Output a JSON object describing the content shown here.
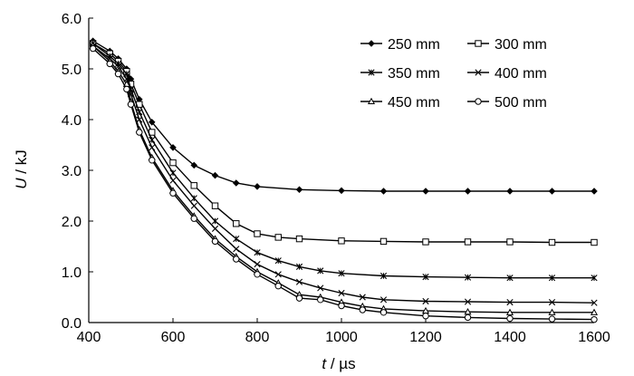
{
  "chart_data": {
    "type": "line",
    "title": "",
    "x_axis": {
      "label": {
        "var": "t",
        "unit": " / µs"
      },
      "range": [
        400,
        1600
      ],
      "ticks": [
        400,
        600,
        800,
        1000,
        1200,
        1400,
        1600
      ]
    },
    "y_axis": {
      "label": {
        "var": "U",
        "unit": " / kJ"
      },
      "range": [
        0.0,
        6.0
      ],
      "ticks": [
        "0.0",
        "1.0",
        "2.0",
        "3.0",
        "4.0",
        "5.0",
        "6.0"
      ]
    },
    "grid": false,
    "legend_position": "top-right",
    "series": [
      {
        "name": "250 mm",
        "marker": "diamond",
        "x": [
          410,
          450,
          470,
          490,
          500,
          520,
          550,
          600,
          650,
          700,
          750,
          800,
          900,
          1000,
          1100,
          1200,
          1300,
          1400,
          1500,
          1600
        ],
        "y": [
          5.55,
          5.35,
          5.2,
          5.0,
          4.8,
          4.4,
          3.95,
          3.45,
          3.1,
          2.9,
          2.75,
          2.68,
          2.62,
          2.6,
          2.59,
          2.59,
          2.59,
          2.59,
          2.59,
          2.59
        ]
      },
      {
        "name": "300 mm",
        "marker": "square",
        "x": [
          410,
          450,
          470,
          490,
          500,
          520,
          550,
          600,
          650,
          700,
          750,
          800,
          850,
          900,
          1000,
          1100,
          1200,
          1300,
          1400,
          1500,
          1600
        ],
        "y": [
          5.5,
          5.3,
          5.15,
          4.95,
          4.7,
          4.3,
          3.75,
          3.15,
          2.7,
          2.3,
          1.95,
          1.75,
          1.68,
          1.65,
          1.61,
          1.6,
          1.59,
          1.59,
          1.59,
          1.58,
          1.58
        ]
      },
      {
        "name": "350 mm",
        "marker": "asterisk",
        "x": [
          410,
          450,
          470,
          490,
          500,
          520,
          550,
          600,
          650,
          700,
          750,
          800,
          850,
          900,
          950,
          1000,
          1100,
          1200,
          1300,
          1400,
          1500,
          1600
        ],
        "y": [
          5.5,
          5.25,
          5.1,
          4.9,
          4.6,
          4.15,
          3.6,
          2.95,
          2.45,
          2.0,
          1.65,
          1.38,
          1.22,
          1.1,
          1.02,
          0.97,
          0.92,
          0.9,
          0.89,
          0.88,
          0.88,
          0.88
        ]
      },
      {
        "name": "400 mm",
        "marker": "cross",
        "x": [
          410,
          450,
          470,
          490,
          500,
          520,
          550,
          600,
          650,
          700,
          750,
          800,
          850,
          900,
          950,
          1000,
          1050,
          1100,
          1200,
          1300,
          1400,
          1500,
          1600
        ],
        "y": [
          5.45,
          5.2,
          5.05,
          4.8,
          4.5,
          4.0,
          3.45,
          2.8,
          2.3,
          1.85,
          1.45,
          1.15,
          0.95,
          0.8,
          0.68,
          0.58,
          0.5,
          0.45,
          0.42,
          0.41,
          0.4,
          0.4,
          0.39
        ]
      },
      {
        "name": "450 mm",
        "marker": "triangle",
        "x": [
          410,
          450,
          470,
          490,
          500,
          520,
          550,
          600,
          650,
          700,
          750,
          800,
          850,
          900,
          950,
          1000,
          1050,
          1100,
          1200,
          1300,
          1400,
          1500,
          1600
        ],
        "y": [
          5.45,
          5.15,
          4.95,
          4.7,
          4.35,
          3.8,
          3.25,
          2.6,
          2.1,
          1.65,
          1.3,
          1.0,
          0.78,
          0.55,
          0.5,
          0.4,
          0.32,
          0.27,
          0.23,
          0.21,
          0.2,
          0.2,
          0.2
        ]
      },
      {
        "name": "500 mm",
        "marker": "circle",
        "x": [
          410,
          450,
          470,
          490,
          500,
          520,
          550,
          600,
          650,
          700,
          750,
          800,
          850,
          900,
          950,
          1000,
          1050,
          1100,
          1200,
          1300,
          1400,
          1500,
          1600
        ],
        "y": [
          5.4,
          5.1,
          4.9,
          4.6,
          4.3,
          3.75,
          3.2,
          2.55,
          2.05,
          1.6,
          1.25,
          0.95,
          0.72,
          0.48,
          0.45,
          0.33,
          0.25,
          0.2,
          0.13,
          0.1,
          0.08,
          0.07,
          0.06
        ]
      }
    ]
  }
}
